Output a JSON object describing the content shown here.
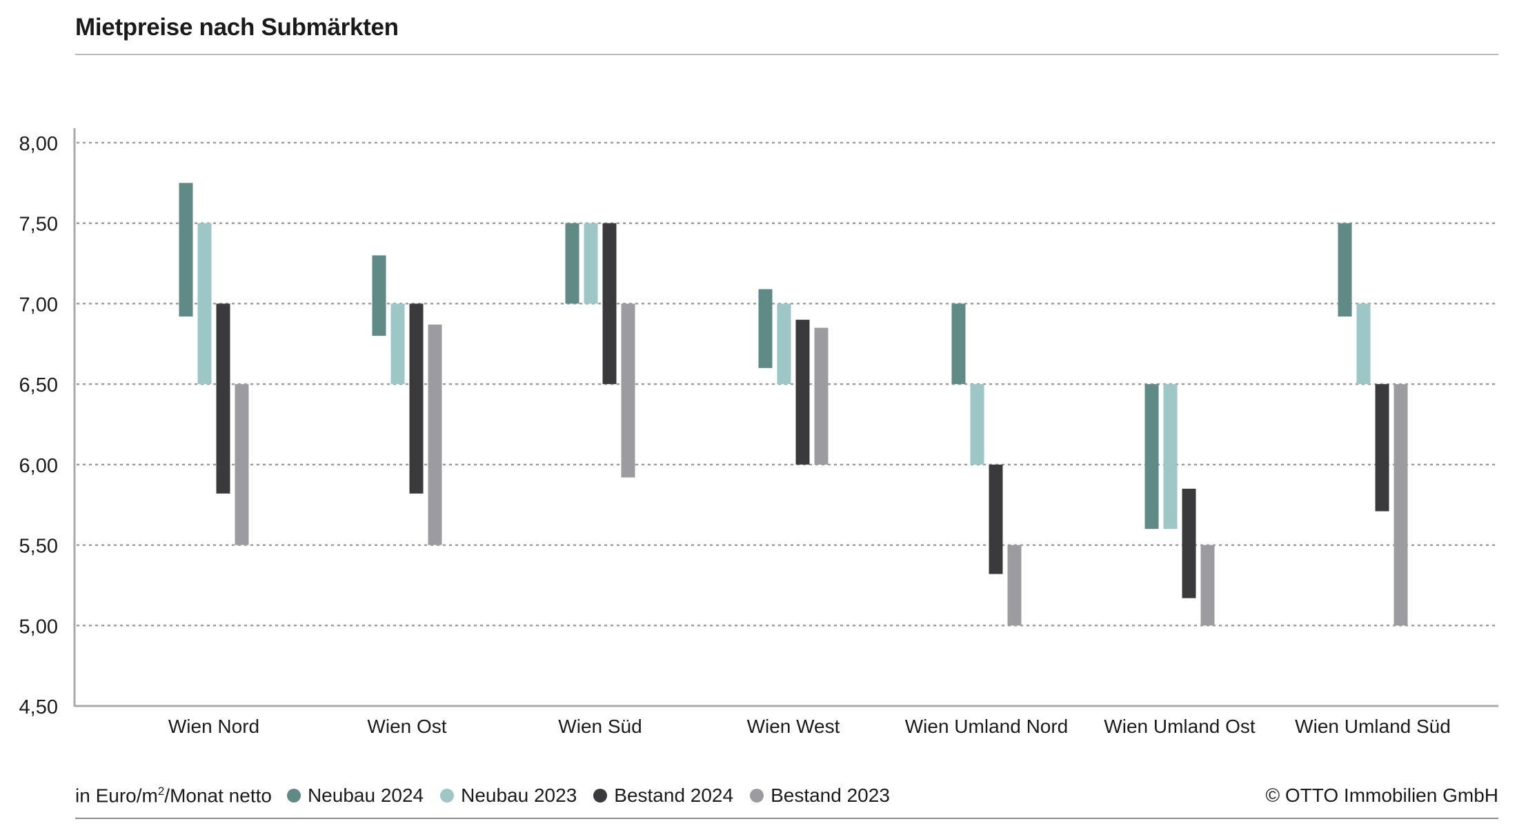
{
  "title": "Mietpreise nach Submärkten",
  "footer": {
    "unit_prefix": "in Euro/m",
    "unit_sup": "2",
    "unit_suffix": "/Monat netto",
    "copyright": "© OTTO Immobilien GmbH"
  },
  "colors": {
    "Neubau 2024": "#5f8a85",
    "Neubau 2023": "#9dc6c7",
    "Bestand 2024": "#3a3a3c",
    "Bestand 2023": "#9c9ca0",
    "grid": "#9a9a9a",
    "axis": "#a8a8a8"
  },
  "chart_data": {
    "type": "floating-bar",
    "title": "Mietpreise nach Submärkten",
    "ylim": [
      4.5,
      8.0
    ],
    "yticks": [
      "4,50",
      "5,00",
      "5,50",
      "6,00",
      "6,50",
      "7,00",
      "7,50",
      "8,00"
    ],
    "ytick_values": [
      4.5,
      5.0,
      5.5,
      6.0,
      6.5,
      7.0,
      7.5,
      8.0
    ],
    "grid": "dotted horizontal",
    "legend_position": "bottom",
    "categories": [
      "Wien Nord",
      "Wien Ost",
      "Wien Süd",
      "Wien West",
      "Wien Umland Nord",
      "Wien Umland Ost",
      "Wien Umland Süd"
    ],
    "series": [
      {
        "name": "Neubau 2024",
        "ranges": [
          [
            6.92,
            7.75
          ],
          [
            6.8,
            7.3
          ],
          [
            7.0,
            7.5
          ],
          [
            6.6,
            7.09
          ],
          [
            6.5,
            7.0
          ],
          [
            5.6,
            6.5
          ],
          [
            6.92,
            7.5
          ]
        ]
      },
      {
        "name": "Neubau 2023",
        "ranges": [
          [
            6.5,
            7.5
          ],
          [
            6.5,
            7.0
          ],
          [
            7.0,
            7.5
          ],
          [
            6.5,
            7.0
          ],
          [
            6.0,
            6.5
          ],
          [
            5.6,
            6.5
          ],
          [
            6.5,
            7.0
          ]
        ]
      },
      {
        "name": "Bestand 2024",
        "ranges": [
          [
            5.82,
            7.0
          ],
          [
            5.82,
            7.0
          ],
          [
            6.5,
            7.5
          ],
          [
            6.0,
            6.9
          ],
          [
            5.32,
            6.0
          ],
          [
            5.17,
            5.85
          ],
          [
            5.71,
            6.5
          ]
        ]
      },
      {
        "name": "Bestand 2023",
        "ranges": [
          [
            5.5,
            6.5
          ],
          [
            5.5,
            6.87
          ],
          [
            5.92,
            7.0
          ],
          [
            6.0,
            6.85
          ],
          [
            5.0,
            5.5
          ],
          [
            5.0,
            5.5
          ],
          [
            5.0,
            6.5
          ]
        ]
      }
    ]
  }
}
